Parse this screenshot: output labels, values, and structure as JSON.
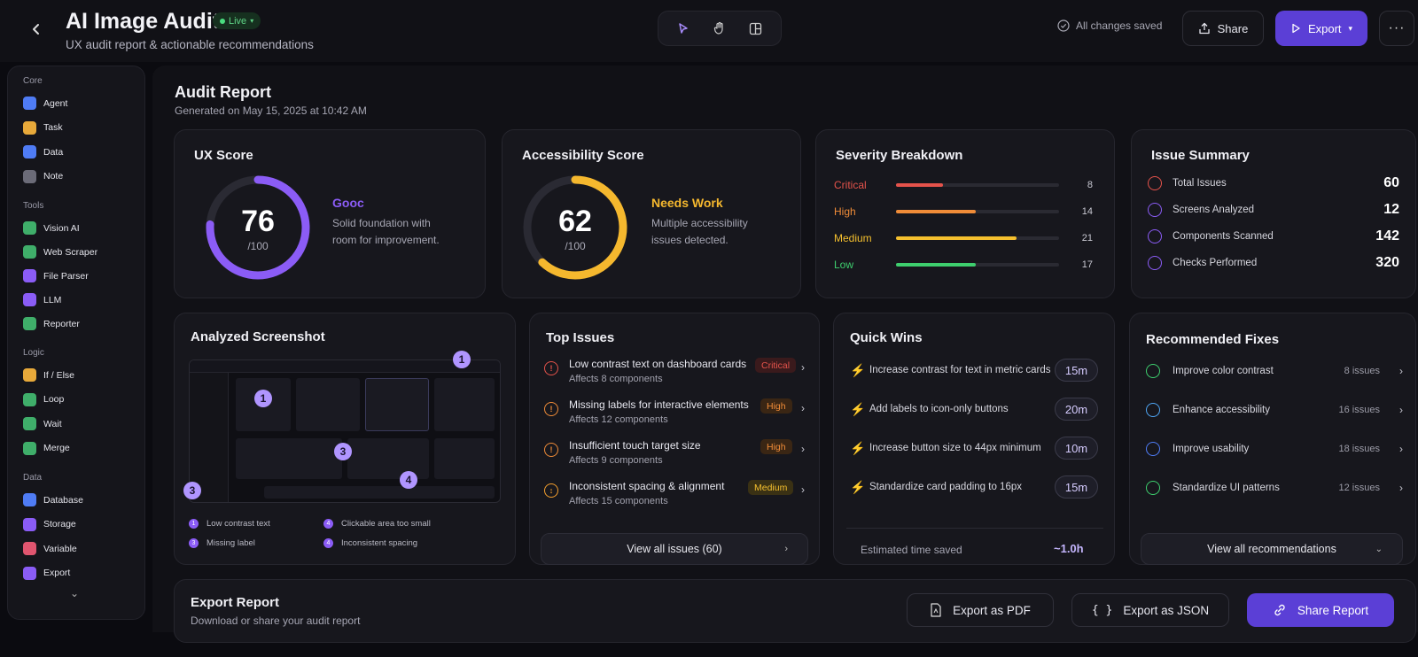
{
  "header": {
    "title": "AI Image Audit",
    "live_label": "Live",
    "subtitle": "UX audit report & actionable recommendations",
    "saved_label": "All changes saved",
    "share_label": "Share",
    "export_label": "Export",
    "more_label": "···"
  },
  "sidebar": {
    "groups": [
      {
        "label": "Core",
        "items": [
          {
            "label": "Agent",
            "icon": "agent-icon",
            "color": "#4f7cf5"
          },
          {
            "label": "Task",
            "icon": "task-icon",
            "color": "#e8a93a"
          },
          {
            "label": "Data",
            "icon": "data-icon",
            "color": "#4f7cf5"
          },
          {
            "label": "Note",
            "icon": "note-icon",
            "color": "#6b6b78"
          }
        ]
      },
      {
        "label": "Tools",
        "items": [
          {
            "label": "Vision AI",
            "icon": "vision-icon",
            "color": "#3fae6a"
          },
          {
            "label": "Web Scraper",
            "icon": "scraper-icon",
            "color": "#3fae6a"
          },
          {
            "label": "File Parser",
            "icon": "parser-icon",
            "color": "#8a5cf6"
          },
          {
            "label": "LLM",
            "icon": "llm-icon",
            "color": "#8a5cf6"
          },
          {
            "label": "Reporter",
            "icon": "reporter-icon",
            "color": "#3fae6a"
          }
        ]
      },
      {
        "label": "Logic",
        "items": [
          {
            "label": "If / Else",
            "icon": "branch-icon",
            "color": "#e8a93a"
          },
          {
            "label": "Loop",
            "icon": "loop-icon",
            "color": "#3fae6a"
          },
          {
            "label": "Wait",
            "icon": "wait-icon",
            "color": "#3fae6a"
          },
          {
            "label": "Merge",
            "icon": "merge-icon",
            "color": "#3fae6a"
          }
        ]
      },
      {
        "label": "Data",
        "items": [
          {
            "label": "Database",
            "icon": "database-icon",
            "color": "#4f7cf5"
          },
          {
            "label": "Storage",
            "icon": "storage-icon",
            "color": "#8a5cf6"
          },
          {
            "label": "Variable",
            "icon": "variable-icon",
            "color": "#e0556f"
          },
          {
            "label": "Export",
            "icon": "export-icon",
            "color": "#8a5cf6"
          }
        ]
      }
    ]
  },
  "report": {
    "title": "Audit Report",
    "generated": "Generated on May 15, 2025 at 10:42 AM"
  },
  "ux_score": {
    "title": "UX Score",
    "value": "76",
    "denominator": "/100",
    "fraction": 0.76,
    "rating": "Gooc",
    "description_line1": "Solid foundation with",
    "description_line2": "room for improvement.",
    "color": "#8b5cf6"
  },
  "a11y_score": {
    "title": "Accessibility Score",
    "value": "62",
    "denominator": "/100",
    "fraction": 0.62,
    "rating": "Needs Work",
    "description_line1": "Multiple accessibility",
    "description_line2": "issues detected.",
    "color": "#f5b82e"
  },
  "severity": {
    "title": "Severity Breakdown",
    "rows": [
      {
        "label": "Critical",
        "count": "8",
        "fraction": 0.29,
        "color": "#e5534b"
      },
      {
        "label": "High",
        "count": "14",
        "fraction": 0.49,
        "color": "#f08c38"
      },
      {
        "label": "Medium",
        "count": "21",
        "fraction": 0.74,
        "color": "#f5c02e"
      },
      {
        "label": "Low",
        "count": "17",
        "fraction": 0.49,
        "color": "#3ecf6e"
      }
    ]
  },
  "summary": {
    "title": "Issue Summary",
    "rows": [
      {
        "label": "Total Issues",
        "value": "60",
        "icon": "alert-icon",
        "color": "#e5534b"
      },
      {
        "label": "Screens Analyzed",
        "value": "12",
        "icon": "screen-icon",
        "color": "#8b5cf6"
      },
      {
        "label": "Components Scanned",
        "value": "142",
        "icon": "component-icon",
        "color": "#8b5cf6"
      },
      {
        "label": "Checks Performed",
        "value": "320",
        "icon": "check-icon",
        "color": "#8b5cf6"
      }
    ]
  },
  "screenshot": {
    "title": "Analyzed Screenshot",
    "markers": [
      "1",
      "1",
      "3",
      "3",
      "4"
    ],
    "legend": [
      {
        "num": "1",
        "label": "Low contrast text"
      },
      {
        "num": "4",
        "label": "Clickable area too small"
      },
      {
        "num": "3",
        "label": "Missing label"
      },
      {
        "num": "4",
        "label": "Inconsistent spacing"
      }
    ]
  },
  "top_issues": {
    "title": "Top Issues",
    "items": [
      {
        "title": "Low contrast text on dashboard cards",
        "sub": "Affects 8 components",
        "badge": "Critical",
        "badge_color": "#e5534b",
        "badge_bg": "#3a1a1c",
        "icon": "!",
        "icon_color": "#e5534b"
      },
      {
        "title": "Missing labels for interactive elements",
        "sub": "Affects 12 components",
        "badge": "High",
        "badge_color": "#f08c38",
        "badge_bg": "#3a2614",
        "icon": "!",
        "icon_color": "#f08c38"
      },
      {
        "title": "Insufficient touch target size",
        "sub": "Affects 9 components",
        "badge": "High",
        "badge_color": "#f08c38",
        "badge_bg": "#3a2614",
        "icon": "!",
        "icon_color": "#f08c38"
      },
      {
        "title": "Inconsistent spacing & alignment",
        "sub": "Affects 15 components",
        "badge": "Medium",
        "badge_color": "#f5c02e",
        "badge_bg": "#3a3114",
        "icon": "↕",
        "icon_color": "#f5a02e"
      }
    ],
    "view_all": "View all issues (60)"
  },
  "quick_wins": {
    "title": "Quick Wins",
    "items": [
      {
        "label": "Increase contrast for text in metric cards",
        "time": "15m"
      },
      {
        "label": "Add labels to icon-only buttons",
        "time": "20m"
      },
      {
        "label": "Increase button size to 44px minimum",
        "time": "10m"
      },
      {
        "label": "Standardize card padding to 16px",
        "time": "15m"
      }
    ],
    "estimate_label": "Estimated time saved",
    "estimate_value": "~1.0h"
  },
  "fixes": {
    "title": "Recommended Fixes",
    "items": [
      {
        "label": "Improve color contrast",
        "count": "8 issues",
        "icon": "contrast-icon",
        "color": "#3ecf6e"
      },
      {
        "label": "Enhance accessibility",
        "count": "16 issues",
        "icon": "accessibility-icon",
        "color": "#4fa6f5"
      },
      {
        "label": "Improve usability",
        "count": "18 issues",
        "icon": "usability-icon",
        "color": "#4f7cf5"
      },
      {
        "label": "Standardize UI patterns",
        "count": "12 issues",
        "icon": "pattern-icon",
        "color": "#3ecf6e"
      }
    ],
    "view_all": "View all recommendations"
  },
  "export_section": {
    "title": "Export Report",
    "subtitle": "Download or share your audit report",
    "pdf_label": "Export as PDF",
    "json_label": "Export as JSON",
    "json_icon": "{ }",
    "share_label": "Share Report"
  }
}
